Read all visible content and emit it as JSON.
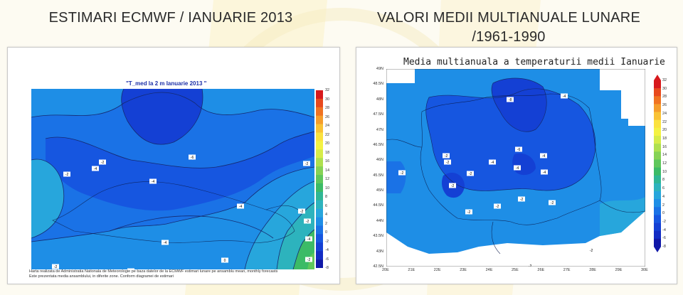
{
  "slide": {
    "left_title": "ESTIMARI ECMWF / IANUARIE 2013",
    "right_title_line1": "VALORI MEDII MULTIANUALE LUNARE",
    "right_title_line2": "/1961-1990"
  },
  "left_map": {
    "title": "\"T_med la 2 m Ianuarie 2013 \"",
    "note_line1": "Harta realizata de Administratia Nationala de Meteorologie pe baza datelor de la ECMWF estimari lunare pe ansamblu mean, monthly forecasts",
    "note_line2": "Este prezentata media ansamblului, in diferite zone. Conform diagramei de estimari",
    "colorbar_ticks": [
      "32",
      "30",
      "28",
      "26",
      "24",
      "22",
      "20",
      "18",
      "16",
      "14",
      "12",
      "10",
      "8",
      "6",
      "4",
      "2",
      "0",
      "-2",
      "-4",
      "-6",
      "-8"
    ],
    "colorbar_colors": [
      "#d7191c",
      "#e8491d",
      "#f07321",
      "#f59d2b",
      "#f9c235",
      "#fbe23f",
      "#f4f243",
      "#d6ec49",
      "#aee04f",
      "#86d255",
      "#5fc75c",
      "#3cbb66",
      "#2fb694",
      "#2db3bd",
      "#27a6dc",
      "#1e8ee6",
      "#1a72e6",
      "#1656e0",
      "#1440d4",
      "#122cc4",
      "#1018a8"
    ],
    "contour_labels": [
      "-2",
      "-4",
      "-6",
      "-4",
      "-2",
      "-2",
      "-4",
      "-4",
      "-2",
      "-2",
      "0",
      "0",
      "-2",
      "-4",
      "-2",
      "0"
    ]
  },
  "right_map": {
    "title": "Media multianuala a temperaturii medii Ianuarie",
    "lat_ticks": [
      "49N",
      "48.5N",
      "48N",
      "47.5N",
      "47N",
      "46.5N",
      "46N",
      "45.5N",
      "45N",
      "44.5N",
      "44N",
      "43.5N",
      "43N",
      "42.5N"
    ],
    "lon_ticks": [
      "20E",
      "21E",
      "22E",
      "23E",
      "24E",
      "25E",
      "26E",
      "27E",
      "28E",
      "29E",
      "30E"
    ],
    "colorbar_ticks": [
      "32",
      "30",
      "28",
      "26",
      "24",
      "22",
      "20",
      "18",
      "16",
      "14",
      "12",
      "10",
      "8",
      "6",
      "4",
      "2",
      "0",
      "-2",
      "-4",
      "-6",
      "-8"
    ],
    "colorbar_colors": [
      "#d7191c",
      "#e8491d",
      "#f07321",
      "#f59d2b",
      "#f9c235",
      "#fbe23f",
      "#f4f243",
      "#d6ec49",
      "#aee04f",
      "#86d255",
      "#5fc75c",
      "#3cbb66",
      "#2fb694",
      "#2db3bd",
      "#27a6dc",
      "#1e8ee6",
      "#1a72e6",
      "#1656e0",
      "#1440d4",
      "#122cc4",
      "#1018a8"
    ],
    "contour_labels": [
      "-8",
      "-4",
      "-2",
      "-2",
      "-6",
      "-4",
      "-4",
      "-4",
      "-2",
      "-4",
      "-2",
      "-2",
      "-2",
      "-2",
      "-2",
      "-2",
      "-2",
      "-2"
    ]
  }
}
